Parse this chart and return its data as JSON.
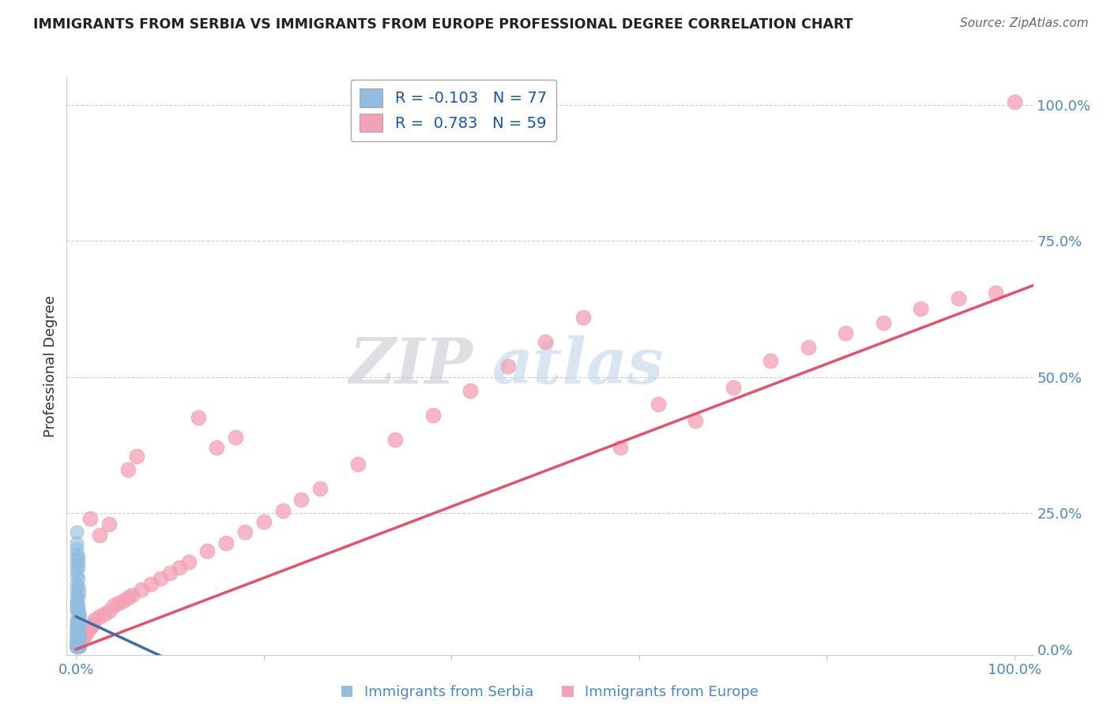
{
  "title": "IMMIGRANTS FROM SERBIA VS IMMIGRANTS FROM EUROPE PROFESSIONAL DEGREE CORRELATION CHART",
  "source": "Source: ZipAtlas.com",
  "ylabel": "Professional Degree",
  "right_yticklabels": [
    "0.0%",
    "25.0%",
    "50.0%",
    "75.0%",
    "100.0%"
  ],
  "right_ytick_vals": [
    0.0,
    0.25,
    0.5,
    0.75,
    1.0
  ],
  "legend_serbia_r": -0.103,
  "legend_serbia_n": 77,
  "legend_europe_r": 0.783,
  "legend_europe_n": 59,
  "serbia_color": "#90bde0",
  "europe_color": "#f4a0b5",
  "serbia_line_color": "#3a6faa",
  "europe_line_color": "#e8506a",
  "serbia_scatter_x": [
    0.001,
    0.002,
    0.001,
    0.003,
    0.002,
    0.001,
    0.004,
    0.003,
    0.001,
    0.002,
    0.001,
    0.002,
    0.001,
    0.003,
    0.001,
    0.002,
    0.002,
    0.001,
    0.001,
    0.002,
    0.001,
    0.001,
    0.002,
    0.001,
    0.003,
    0.002,
    0.001,
    0.002,
    0.001,
    0.001,
    0.002,
    0.001,
    0.002,
    0.001,
    0.003,
    0.002,
    0.001,
    0.002,
    0.001,
    0.001,
    0.001,
    0.002,
    0.001,
    0.002,
    0.001,
    0.003,
    0.002,
    0.001,
    0.002,
    0.001,
    0.004,
    0.003,
    0.002,
    0.001,
    0.001,
    0.002,
    0.001,
    0.002,
    0.001,
    0.001,
    0.002,
    0.001,
    0.003,
    0.001,
    0.002,
    0.001,
    0.002,
    0.001,
    0.001,
    0.002,
    0.001,
    0.002,
    0.001,
    0.002,
    0.001,
    0.001,
    0.001
  ],
  "serbia_scatter_y": [
    0.215,
    0.06,
    0.005,
    0.005,
    0.005,
    0.005,
    0.005,
    0.005,
    0.005,
    0.005,
    0.01,
    0.01,
    0.01,
    0.01,
    0.01,
    0.01,
    0.01,
    0.015,
    0.015,
    0.015,
    0.015,
    0.015,
    0.015,
    0.02,
    0.02,
    0.02,
    0.02,
    0.02,
    0.025,
    0.025,
    0.025,
    0.025,
    0.025,
    0.03,
    0.03,
    0.03,
    0.03,
    0.035,
    0.035,
    0.035,
    0.035,
    0.04,
    0.04,
    0.04,
    0.045,
    0.045,
    0.05,
    0.05,
    0.055,
    0.055,
    0.06,
    0.065,
    0.07,
    0.07,
    0.075,
    0.075,
    0.08,
    0.08,
    0.085,
    0.09,
    0.095,
    0.1,
    0.105,
    0.11,
    0.115,
    0.12,
    0.13,
    0.135,
    0.145,
    0.15,
    0.155,
    0.16,
    0.165,
    0.17,
    0.175,
    0.185,
    0.195
  ],
  "europe_scatter_x": [
    0.001,
    0.003,
    0.005,
    0.007,
    0.009,
    0.01,
    0.012,
    0.014,
    0.016,
    0.018,
    0.02,
    0.025,
    0.03,
    0.035,
    0.04,
    0.045,
    0.05,
    0.055,
    0.06,
    0.07,
    0.08,
    0.09,
    0.1,
    0.11,
    0.12,
    0.14,
    0.16,
    0.18,
    0.2,
    0.22,
    0.24,
    0.26,
    0.3,
    0.34,
    0.38,
    0.42,
    0.46,
    0.5,
    0.54,
    0.58,
    0.62,
    0.66,
    0.7,
    0.74,
    0.78,
    0.82,
    0.86,
    0.9,
    0.94,
    0.98,
    0.015,
    0.025,
    0.035,
    0.055,
    0.065,
    0.13,
    0.15,
    0.17,
    1.0
  ],
  "europe_scatter_y": [
    0.005,
    0.01,
    0.015,
    0.02,
    0.025,
    0.028,
    0.032,
    0.038,
    0.042,
    0.048,
    0.055,
    0.06,
    0.065,
    0.07,
    0.08,
    0.085,
    0.09,
    0.095,
    0.1,
    0.11,
    0.12,
    0.13,
    0.14,
    0.15,
    0.16,
    0.18,
    0.195,
    0.215,
    0.235,
    0.255,
    0.275,
    0.295,
    0.34,
    0.385,
    0.43,
    0.475,
    0.52,
    0.565,
    0.61,
    0.37,
    0.45,
    0.42,
    0.48,
    0.53,
    0.555,
    0.58,
    0.6,
    0.625,
    0.645,
    0.655,
    0.24,
    0.21,
    0.23,
    0.33,
    0.355,
    0.425,
    0.37,
    0.39,
    1.005
  ],
  "watermark_zip": "ZIP",
  "watermark_atlas": "atlas",
  "background_color": "#ffffff",
  "grid_color": "#cccccc",
  "bottom_legend_labels": [
    "Immigrants from Serbia",
    "Immigrants from Europe"
  ],
  "xlim": [
    0.0,
    1.0
  ],
  "ylim": [
    0.0,
    1.0
  ]
}
